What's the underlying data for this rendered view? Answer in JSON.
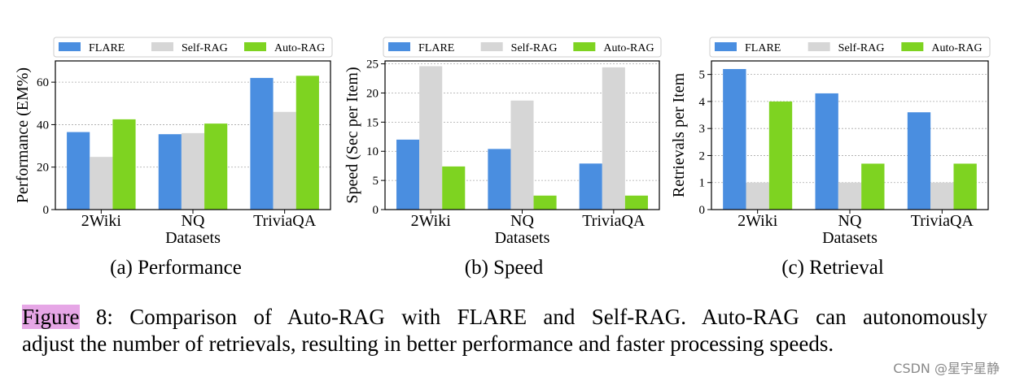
{
  "colors": {
    "FLARE": "#4a8ee0",
    "Self-RAG": "#d6d6d6",
    "Auto-RAG": "#7ed321"
  },
  "chart_data": [
    {
      "type": "bar",
      "caption": "(a) Performance",
      "categories": [
        "2Wiki",
        "NQ",
        "TriviaQA"
      ],
      "series": [
        {
          "name": "FLARE",
          "values": [
            36.5,
            35.5,
            62.0
          ]
        },
        {
          "name": "Self-RAG",
          "values": [
            24.8,
            36.0,
            46.0
          ]
        },
        {
          "name": "Auto-RAG",
          "values": [
            42.5,
            40.5,
            63.0
          ]
        }
      ],
      "xlabel": "Datasets",
      "ylabel": "Performance (EM%)",
      "ylim": [
        0,
        70
      ],
      "yticks": [
        0,
        20,
        40,
        60
      ],
      "grid": true,
      "legend": "top"
    },
    {
      "type": "bar",
      "caption": "(b) Speed",
      "categories": [
        "2Wiki",
        "NQ",
        "TriviaQA"
      ],
      "series": [
        {
          "name": "FLARE",
          "values": [
            12.0,
            10.4,
            7.9
          ]
        },
        {
          "name": "Self-RAG",
          "values": [
            24.6,
            18.7,
            24.4
          ]
        },
        {
          "name": "Auto-RAG",
          "values": [
            7.4,
            2.4,
            2.4
          ]
        }
      ],
      "xlabel": "Datasets",
      "ylabel": "Speed (Sec per Item)",
      "ylim": [
        0,
        25.5
      ],
      "yticks": [
        0,
        5,
        10,
        15,
        20,
        25
      ],
      "grid": true,
      "legend": "top"
    },
    {
      "type": "bar",
      "caption": "(c) Retrieval",
      "categories": [
        "2Wiki",
        "NQ",
        "TriviaQA"
      ],
      "series": [
        {
          "name": "FLARE",
          "values": [
            5.2,
            4.3,
            3.6
          ]
        },
        {
          "name": "Self-RAG",
          "values": [
            1.0,
            1.0,
            1.0
          ]
        },
        {
          "name": "Auto-RAG",
          "values": [
            4.0,
            1.7,
            1.7
          ]
        }
      ],
      "xlabel": "Datasets",
      "ylabel": "Retrievals per Item",
      "ylim": [
        0,
        5.5
      ],
      "yticks": [
        0,
        1,
        2,
        3,
        4,
        5
      ],
      "grid": true,
      "legend": "top"
    }
  ],
  "caption": {
    "figure_word": "Figure",
    "line1_rest": " 8: Comparison of Auto-RAG with FLARE and Self-RAG. Auto-RAG can autonomously",
    "line2": "adjust the number of retrievals, resulting in better performance and faster processing speeds."
  },
  "watermark": "CSDN @星宇星静"
}
